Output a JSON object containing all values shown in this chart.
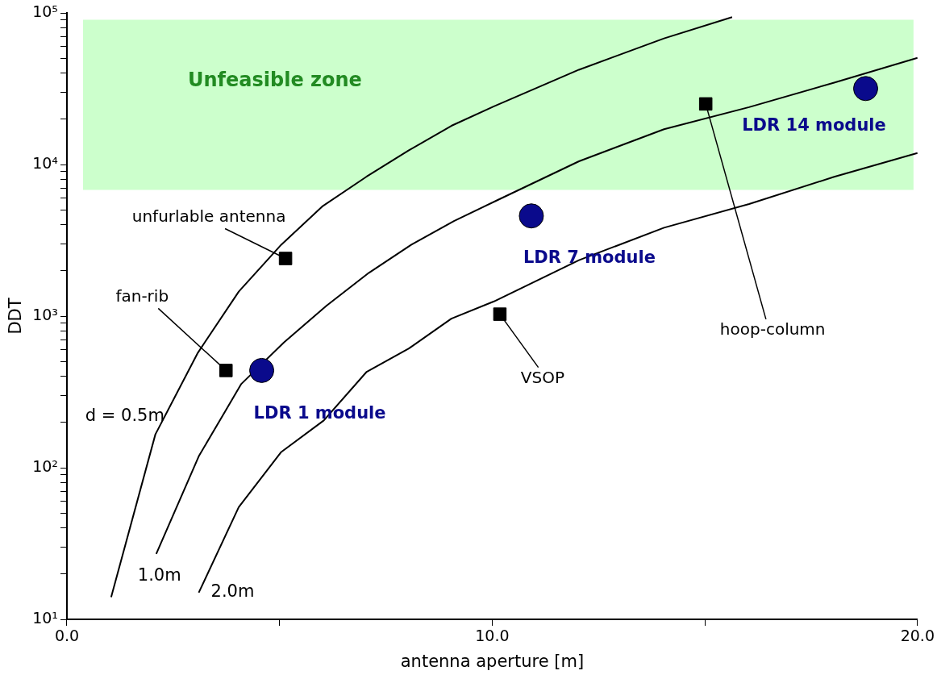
{
  "chart_data": {
    "type": "line",
    "xlabel": "antenna aperture [m]",
    "ylabel": "DDT",
    "log": "y",
    "grid": false,
    "legend": false,
    "line_style": "solid",
    "xlim": [
      0,
      20
    ],
    "ylim": [
      10,
      100000
    ],
    "xticks": [
      {
        "value": 0,
        "label": "0.0"
      },
      {
        "value": 5,
        "label": null
      },
      {
        "value": 10,
        "label": "10.0"
      },
      {
        "value": 15,
        "label": null
      },
      {
        "value": 20,
        "label": "20.0"
      }
    ],
    "yticks": [
      {
        "value": 10,
        "label": "10¹"
      },
      {
        "value": 20,
        "label": null
      },
      {
        "value": 30,
        "label": null
      },
      {
        "value": 40,
        "label": null
      },
      {
        "value": 50,
        "label": null
      },
      {
        "value": 60,
        "label": null
      },
      {
        "value": 70,
        "label": null
      },
      {
        "value": 80,
        "label": null
      },
      {
        "value": 90,
        "label": null
      },
      {
        "value": 100,
        "label": "10²"
      },
      {
        "value": 200,
        "label": null
      },
      {
        "value": 300,
        "label": null
      },
      {
        "value": 400,
        "label": null
      },
      {
        "value": 500,
        "label": null
      },
      {
        "value": 600,
        "label": null
      },
      {
        "value": 700,
        "label": null
      },
      {
        "value": 800,
        "label": null
      },
      {
        "value": 900,
        "label": null
      },
      {
        "value": 1000,
        "label": "10³"
      },
      {
        "value": 2000,
        "label": null
      },
      {
        "value": 3000,
        "label": null
      },
      {
        "value": 4000,
        "label": null
      },
      {
        "value": 5000,
        "label": null
      },
      {
        "value": 6000,
        "label": null
      },
      {
        "value": 7000,
        "label": null
      },
      {
        "value": 8000,
        "label": null
      },
      {
        "value": 9000,
        "label": null
      },
      {
        "value": 10000,
        "label": "10⁴"
      },
      {
        "value": 20000,
        "label": null
      },
      {
        "value": 30000,
        "label": null
      },
      {
        "value": 40000,
        "label": null
      },
      {
        "value": 50000,
        "label": null
      },
      {
        "value": 60000,
        "label": null
      },
      {
        "value": 70000,
        "label": null
      },
      {
        "value": 80000,
        "label": null
      },
      {
        "value": 90000,
        "label": null
      },
      {
        "value": 100000,
        "label": "10⁵"
      }
    ],
    "bands": [
      {
        "axis": "y",
        "from": 6800,
        "to": 90000,
        "label": "Unfeasible zone",
        "color": "#ccffcc"
      }
    ],
    "series": [
      {
        "name": "d = 0.5m",
        "color": "#000000",
        "marker": "none",
        "x": [
          1.04,
          2.08,
          3.08,
          4.04,
          5.04,
          6.0,
          7.04,
          8.04,
          9.04,
          10.04,
          12.04,
          14.04,
          15.64
        ],
        "values": [
          14,
          166,
          574,
          1450,
          2960,
          5280,
          8300,
          12400,
          18000,
          24200,
          42200,
          67900,
          93800
        ]
      },
      {
        "name": "1.0m",
        "color": "#000000",
        "marker": "none",
        "x": [
          2.1,
          3.1,
          4.1,
          5.1,
          6.1,
          7.1,
          8.1,
          9.1,
          10.1,
          12.04,
          14.04,
          16.04,
          18.04,
          20
        ],
        "values": [
          27,
          119,
          357,
          670,
          1170,
          1930,
          2960,
          4240,
          5780,
          10500,
          17100,
          23900,
          34700,
          50500
        ]
      },
      {
        "name": "2.0m",
        "color": "#000000",
        "marker": "none",
        "x": [
          3.1,
          4.04,
          5.04,
          6.04,
          7.04,
          8.04,
          9.04,
          10.04,
          12.04,
          14.04,
          16.04,
          18.04,
          20
        ],
        "values": [
          15,
          55,
          127,
          205,
          427,
          612,
          962,
          1250,
          2340,
          3830,
          5490,
          8290,
          11900
        ]
      },
      {
        "type": "scatter",
        "color": "#000000",
        "marker": "square",
        "x": [
          3.74,
          5.14,
          10.18,
          15.02
        ],
        "values": [
          438,
          2400,
          1030,
          25100
        ]
      },
      {
        "type": "scatter",
        "color": "#0a0a8c",
        "marker": "circle",
        "x": [
          4.58,
          10.92,
          18.78
        ],
        "values": [
          438,
          4580,
          31700
        ]
      }
    ],
    "annotations": [
      {
        "text": "unfurlable antenna",
        "x": 5.14,
        "y": 2400
      },
      {
        "text": "fan-rib",
        "x": 3.74,
        "y": 438
      },
      {
        "text": "VSOP",
        "x": 10.18,
        "y": 1030
      },
      {
        "text": "hoop-column",
        "x": 15.02,
        "y": 25100
      },
      {
        "text": "LDR 1 module",
        "x": 4.58,
        "y": 438
      },
      {
        "text": "LDR 7 module",
        "x": 10.92,
        "y": 4580
      },
      {
        "text": "LDR 14 module",
        "x": 18.78,
        "y": 31700
      }
    ]
  }
}
